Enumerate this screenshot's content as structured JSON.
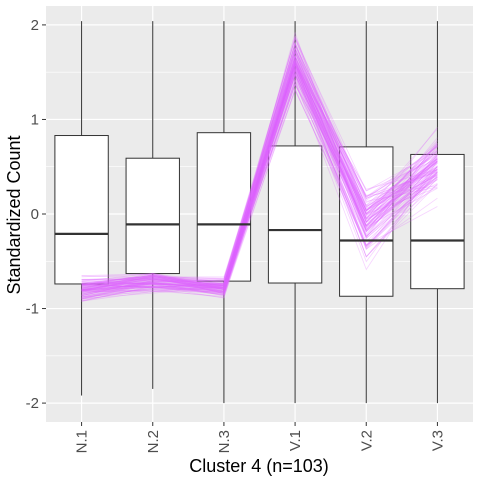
{
  "chart_data": {
    "type": "boxplot",
    "xlabel": "Cluster 4 (n=103)",
    "ylabel": "Standardized Count",
    "categories": [
      "N.1",
      "N.2",
      "N.3",
      "V.1",
      "V.2",
      "V.3"
    ],
    "ylim": [
      -2.2,
      2.2
    ],
    "yticks": [
      -2,
      -1,
      0,
      1,
      2
    ],
    "yticklabels": [
      "-2",
      "-1",
      "0",
      "1",
      "2"
    ],
    "grid": true,
    "boxes": [
      {
        "category": "N.1",
        "whisker_low": -1.92,
        "q1": -0.74,
        "median": -0.21,
        "q3": 0.83,
        "whisker_high": 2.04
      },
      {
        "category": "N.2",
        "whisker_low": -1.85,
        "q1": -0.63,
        "median": -0.11,
        "q3": 0.59,
        "whisker_high": 2.04
      },
      {
        "category": "N.3",
        "whisker_low": -2.0,
        "q1": -0.71,
        "median": -0.11,
        "q3": 0.86,
        "whisker_high": 2.04
      },
      {
        "category": "V.1",
        "whisker_low": -2.0,
        "q1": -0.73,
        "median": -0.17,
        "q3": 0.72,
        "whisker_high": 2.04
      },
      {
        "category": "V.2",
        "whisker_low": -2.0,
        "q1": -0.87,
        "median": -0.28,
        "q3": 0.71,
        "whisker_high": 2.04
      },
      {
        "category": "V.3",
        "whisker_low": -2.0,
        "q1": -0.79,
        "median": -0.28,
        "q3": 0.63,
        "whisker_high": 2.04
      }
    ],
    "profile_lines": {
      "count": 103,
      "mean_profile": [
        -0.8,
        -0.72,
        -0.78,
        1.6,
        -0.1,
        0.55
      ],
      "spread": [
        0.12,
        0.1,
        0.1,
        0.25,
        0.35,
        0.3
      ],
      "color": "#E066FF"
    },
    "colors": {
      "panel": "#EBEBEB",
      "grid_major": "#FFFFFF",
      "box_fill": "#FFFFFF",
      "box_stroke": "#333333",
      "profile": "#E066FF"
    }
  }
}
